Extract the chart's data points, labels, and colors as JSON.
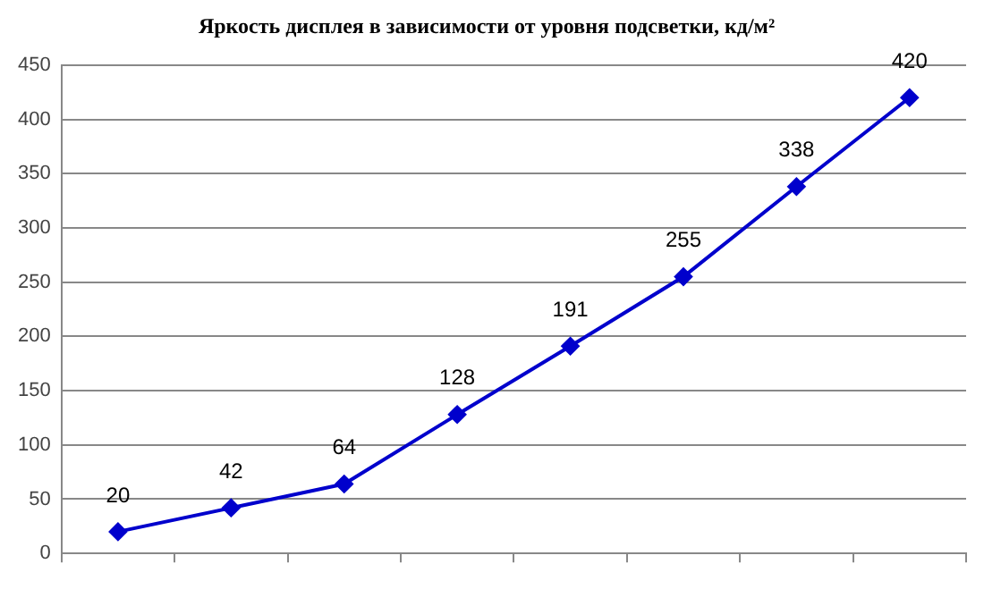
{
  "chart_data": {
    "type": "line",
    "title": "Яркость дисплея в зависимости от уровня подсветки, кд/м²",
    "categories": [
      null,
      null,
      null,
      null,
      null,
      null,
      null,
      null
    ],
    "series": [
      {
        "color": "#0000cc",
        "values": [
          20,
          42,
          64,
          128,
          191,
          255,
          338,
          420
        ]
      }
    ],
    "ylim": [
      0,
      450
    ],
    "yticks": [
      0,
      50,
      100,
      150,
      200,
      250,
      300,
      350,
      400,
      450
    ],
    "grid": "y",
    "legend": false,
    "marker": "diamond",
    "line_style": "solid",
    "data_labels": true
  }
}
